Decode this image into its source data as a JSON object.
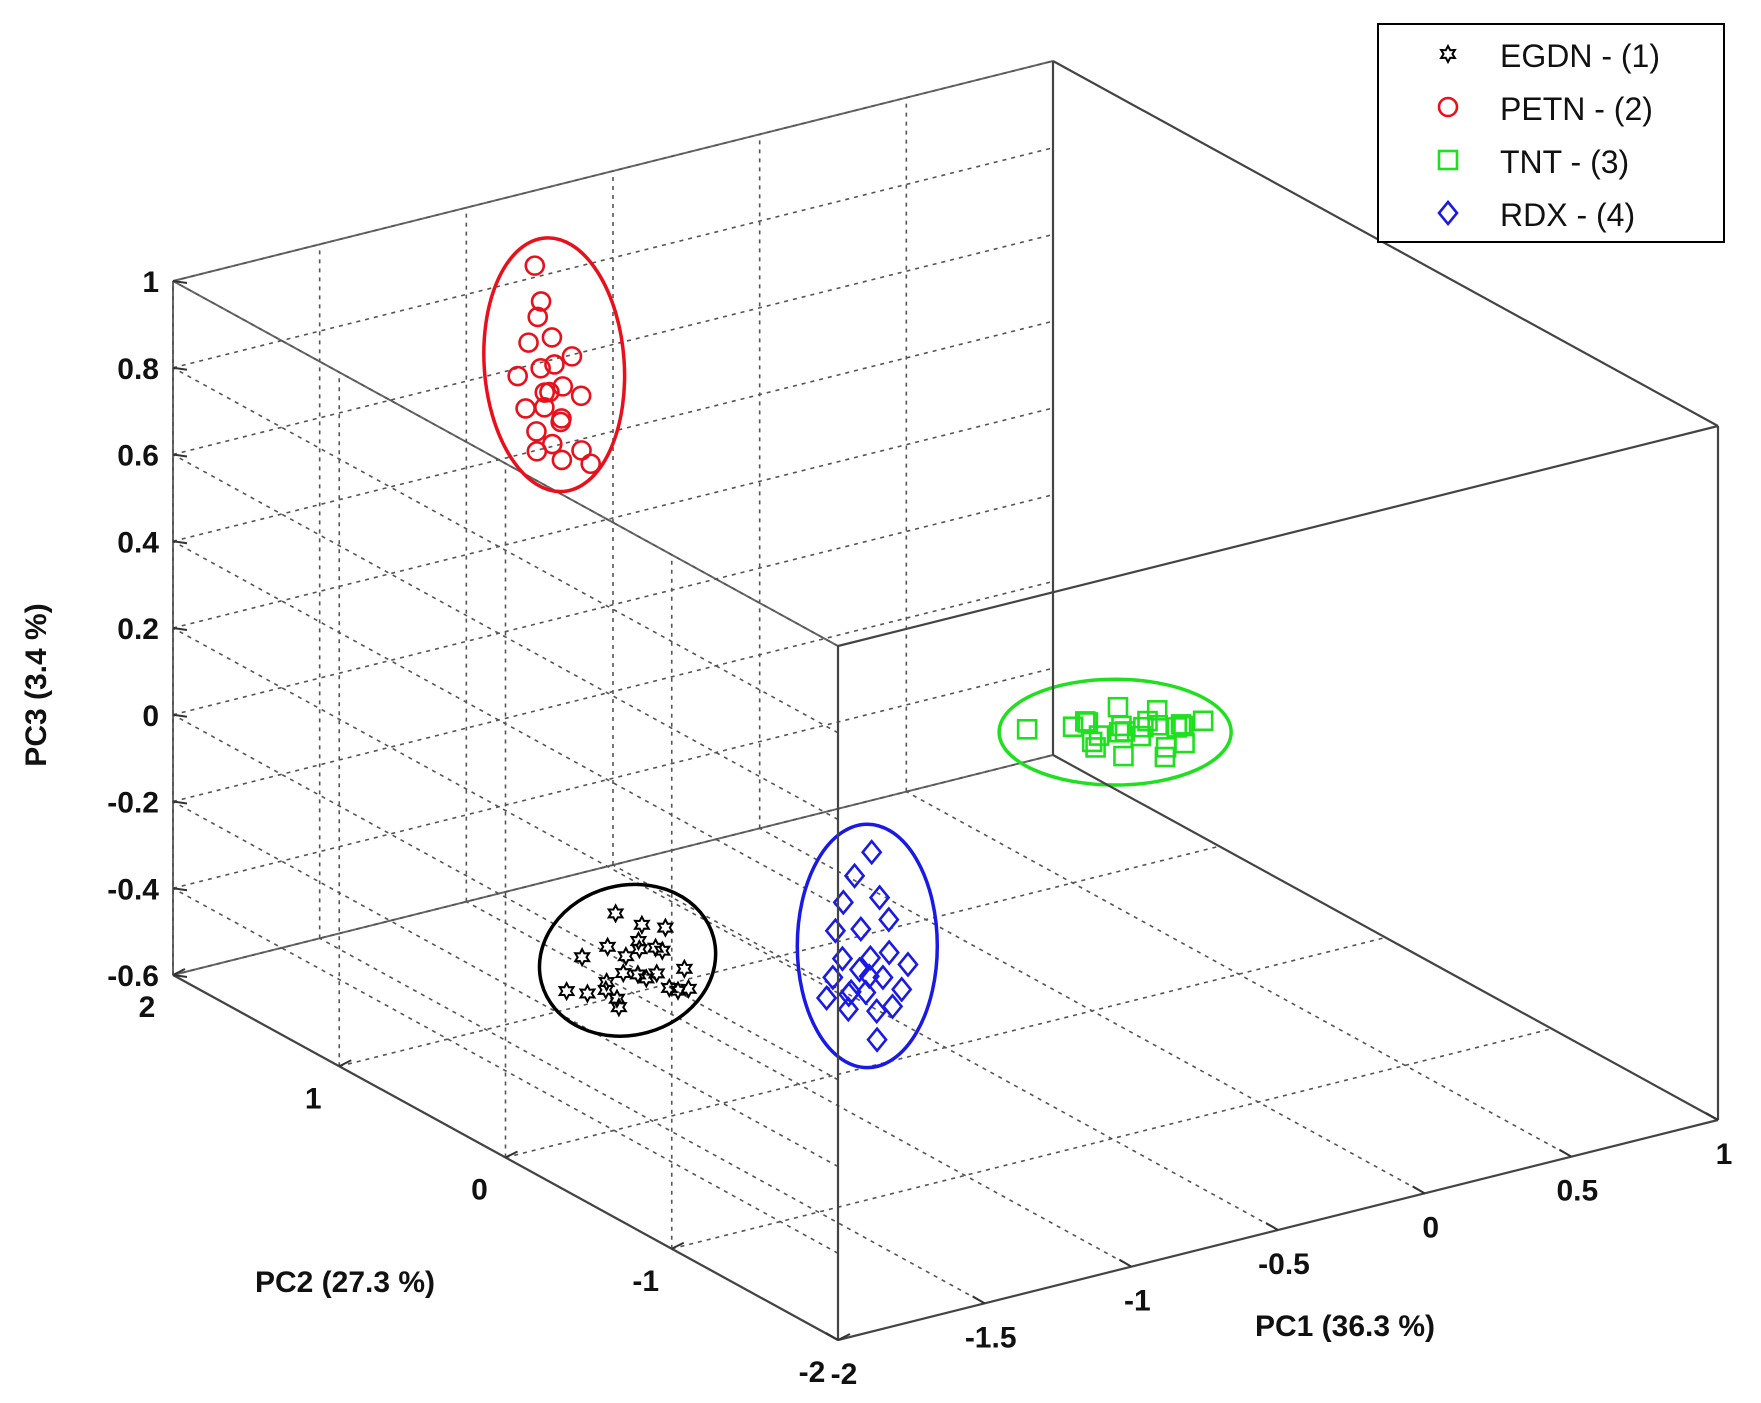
{
  "chart_data": {
    "type": "scatter",
    "projection": "3d",
    "grid": true,
    "legend_placement": "top-right",
    "xlabel": "PC1 (36.3 %)",
    "ylabel": "PC2 (27.3 %)",
    "zlabel": "PC3 (3.4 %)",
    "xlim": [
      -2,
      1
    ],
    "ylim": [
      -2,
      2
    ],
    "zlim": [
      -0.6,
      1
    ],
    "x_ticks": [
      "-2",
      "-1.5",
      "-1",
      "-0.5",
      "0",
      "0.5",
      "1"
    ],
    "y_ticks": [
      "-2",
      "-1",
      "0",
      "1",
      "2"
    ],
    "z_ticks": [
      "-0.6",
      "-0.4",
      "-0.2",
      "0",
      "0.2",
      "0.4",
      "0.6",
      "0.8",
      "1"
    ],
    "series": [
      {
        "name": "EGDN - (1)",
        "marker": "hexagram",
        "color": "#000000",
        "points": [
          [
            -1.45,
            0.3,
            -0.39
          ],
          [
            -1.4,
            0.35,
            -0.35
          ],
          [
            -1.35,
            0.3,
            -0.36
          ],
          [
            -1.3,
            0.25,
            -0.38
          ],
          [
            -1.32,
            0.4,
            -0.3
          ],
          [
            -1.28,
            0.45,
            -0.28
          ],
          [
            -1.38,
            0.48,
            -0.32
          ],
          [
            -1.42,
            0.42,
            -0.4
          ],
          [
            -1.25,
            0.38,
            -0.33
          ],
          [
            -1.22,
            0.3,
            -0.36
          ],
          [
            -1.48,
            0.55,
            -0.42
          ],
          [
            -1.5,
            0.2,
            -0.38
          ],
          [
            -1.33,
            0.52,
            -0.26
          ],
          [
            -1.36,
            0.22,
            -0.33
          ],
          [
            -1.2,
            0.45,
            -0.3
          ],
          [
            -1.44,
            0.38,
            -0.37
          ],
          [
            -1.29,
            0.35,
            -0.31
          ],
          [
            -1.39,
            0.28,
            -0.34
          ],
          [
            -1.26,
            0.5,
            -0.35
          ],
          [
            -1.46,
            0.46,
            -0.41
          ],
          [
            -1.31,
            0.18,
            -0.37
          ],
          [
            -1.24,
            0.24,
            -0.39
          ],
          [
            -1.41,
            0.58,
            -0.36
          ],
          [
            -1.34,
            0.44,
            -0.34
          ]
        ]
      },
      {
        "name": "PETN - (2)",
        "marker": "circle",
        "color": "#e8101a",
        "points": [
          [
            -1.05,
            1.5,
            0.98
          ],
          [
            -1.04,
            1.48,
            0.9
          ],
          [
            -1.02,
            1.45,
            0.82
          ],
          [
            -1.06,
            1.52,
            0.8
          ],
          [
            -0.98,
            1.4,
            0.78
          ],
          [
            -1.0,
            1.47,
            0.75
          ],
          [
            -1.03,
            1.5,
            0.74
          ],
          [
            -1.08,
            1.55,
            0.72
          ],
          [
            -1.05,
            1.44,
            0.7
          ],
          [
            -0.96,
            1.38,
            0.69
          ],
          [
            -1.0,
            1.5,
            0.68
          ],
          [
            -1.04,
            1.46,
            0.66
          ],
          [
            -1.07,
            1.52,
            0.65
          ],
          [
            -1.01,
            1.41,
            0.64
          ],
          [
            -0.99,
            1.45,
            0.62
          ],
          [
            -1.05,
            1.49,
            0.6
          ],
          [
            -1.03,
            1.43,
            0.58
          ],
          [
            -0.97,
            1.36,
            0.57
          ],
          [
            -1.02,
            1.39,
            0.55
          ],
          [
            -0.95,
            1.34,
            0.54
          ],
          [
            -1.06,
            1.47,
            0.56
          ],
          [
            -1.0,
            1.42,
            0.71
          ],
          [
            -1.04,
            1.5,
            0.86
          ]
        ]
      },
      {
        "name": "TNT - (3)",
        "marker": "square",
        "color": "#1fe01f",
        "points": [
          [
            0.02,
            0.15,
            0.02
          ],
          [
            0.08,
            0.1,
            0.0
          ],
          [
            0.14,
            0.05,
            0.01
          ],
          [
            0.2,
            0.02,
            0.03
          ],
          [
            0.26,
            -0.05,
            0.02
          ],
          [
            0.1,
            0.0,
            0.04
          ],
          [
            0.05,
            -0.1,
            0.0
          ],
          [
            0.16,
            0.12,
            -0.01
          ],
          [
            0.22,
            0.08,
            0.0
          ],
          [
            0.3,
            -0.02,
            0.01
          ],
          [
            0.12,
            -0.08,
            0.03
          ],
          [
            0.18,
            -0.12,
            -0.02
          ],
          [
            0.25,
            0.05,
            0.04
          ],
          [
            0.04,
            0.05,
            -0.01
          ],
          [
            0.09,
            0.2,
            0.01
          ],
          [
            0.28,
            0.1,
            -0.01
          ],
          [
            0.35,
            -0.05,
            0.02
          ],
          [
            -0.08,
            0.25,
            0.01
          ],
          [
            0.15,
            -0.18,
            0.02
          ],
          [
            0.32,
            0.03,
            0.0
          ],
          [
            0.0,
            0.0,
            0.02
          ],
          [
            0.19,
            0.18,
            0.03
          ],
          [
            0.23,
            -0.15,
            0.01
          ],
          [
            0.11,
            0.22,
            0.0
          ]
        ]
      },
      {
        "name": "RDX - (4)",
        "marker": "diamond",
        "color": "#1a1ae6",
        "points": [
          [
            -0.95,
            -0.35,
            0.0
          ],
          [
            -0.98,
            -0.3,
            -0.06
          ],
          [
            -0.94,
            -0.38,
            -0.1
          ],
          [
            -0.99,
            -0.25,
            -0.13
          ],
          [
            -0.92,
            -0.4,
            -0.15
          ],
          [
            -0.97,
            -0.32,
            -0.18
          ],
          [
            -1.0,
            -0.22,
            -0.2
          ],
          [
            -0.93,
            -0.42,
            -0.22
          ],
          [
            -0.96,
            -0.36,
            -0.24
          ],
          [
            -1.01,
            -0.28,
            -0.25
          ],
          [
            -0.9,
            -0.48,
            -0.24
          ],
          [
            -0.98,
            -0.33,
            -0.27
          ],
          [
            -0.94,
            -0.4,
            -0.28
          ],
          [
            -1.02,
            -0.24,
            -0.3
          ],
          [
            -0.91,
            -0.46,
            -0.3
          ],
          [
            -0.97,
            -0.35,
            -0.32
          ],
          [
            -1.0,
            -0.3,
            -0.33
          ],
          [
            -0.93,
            -0.44,
            -0.34
          ],
          [
            -1.03,
            -0.22,
            -0.35
          ],
          [
            -0.95,
            -0.38,
            -0.36
          ],
          [
            -0.99,
            -0.28,
            -0.37
          ],
          [
            -0.96,
            -0.4,
            -0.42
          ],
          [
            -0.93,
            -0.3,
            -0.3
          ],
          [
            -1.02,
            -0.35,
            -0.31
          ]
        ]
      }
    ],
    "ellipses": [
      {
        "color": "#000000",
        "center": [
          -1.34,
          0.37,
          -0.34
        ]
      },
      {
        "color": "#e8101a",
        "center": [
          -1.02,
          1.46,
          0.73
        ]
      },
      {
        "color": "#1fe01f",
        "center": [
          0.16,
          0.03,
          0.01
        ]
      },
      {
        "color": "#1a1ae6",
        "center": [
          -0.96,
          -0.35,
          -0.22
        ]
      }
    ]
  }
}
